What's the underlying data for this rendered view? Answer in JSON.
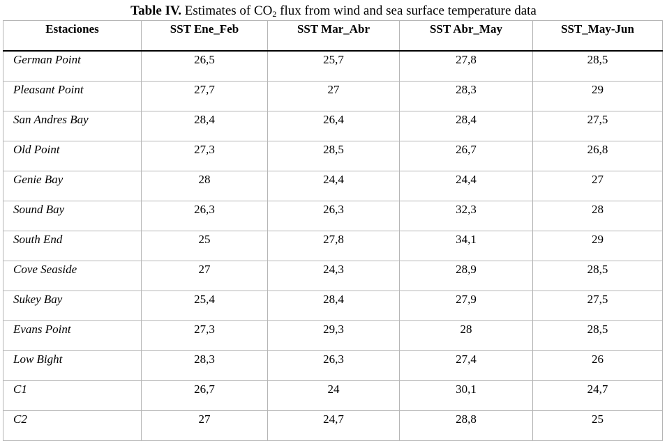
{
  "caption": {
    "label": "Table IV.",
    "text_before_sub": " Estimates of CO",
    "subscript": "2",
    "text_after_sub": " flux from wind and sea surface temperature data"
  },
  "table": {
    "headers": [
      "Estaciones",
      "SST Ene_Feb",
      "SST Mar_Abr",
      "SST Abr_May",
      "SST_May-Jun"
    ],
    "rows": [
      [
        "German Point",
        "26,5",
        "25,7",
        "27,8",
        "28,5"
      ],
      [
        "Pleasant Point",
        "27,7",
        "27",
        "28,3",
        "29"
      ],
      [
        "San Andres Bay",
        "28,4",
        "26,4",
        "28,4",
        "27,5"
      ],
      [
        "Old Point",
        "27,3",
        "28,5",
        "26,7",
        "26,8"
      ],
      [
        "Genie Bay",
        "28",
        "24,4",
        "24,4",
        "27"
      ],
      [
        "Sound Bay",
        "26,3",
        "26,3",
        "32,3",
        "28"
      ],
      [
        "South End",
        "25",
        "27,8",
        "34,1",
        "29"
      ],
      [
        "Cove Seaside",
        "27",
        "24,3",
        "28,9",
        "28,5"
      ],
      [
        "Sukey Bay",
        "25,4",
        "28,4",
        "27,9",
        "27,5"
      ],
      [
        "Evans Point",
        "27,3",
        "29,3",
        "28",
        "28,5"
      ],
      [
        "Low Bight",
        "28,3",
        "26,3",
        "27,4",
        "26"
      ],
      [
        "C1",
        "26,7",
        "24",
        "30,1",
        "24,7"
      ],
      [
        "C2",
        "27",
        "24,7",
        "28,8",
        "25"
      ]
    ]
  }
}
